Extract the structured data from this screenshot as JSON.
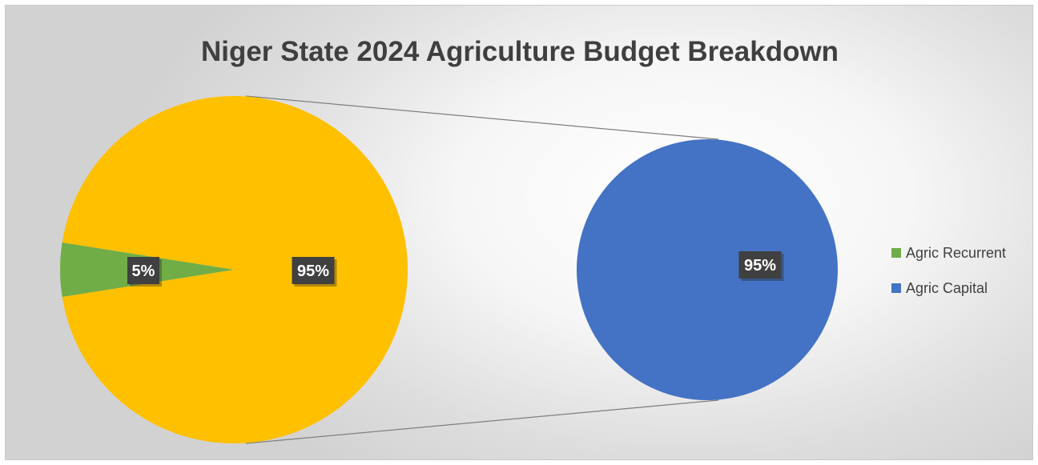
{
  "title": "Niger State 2024 Agriculture Budget Breakdown",
  "colors": {
    "recurrent": "#70ad47",
    "primary_other": "#ffc000",
    "capital": "#4472c4",
    "connector": "#7f7f7f",
    "label_bg": "#404040",
    "label_text": "#ffffff"
  },
  "chart_data": {
    "type": "pie",
    "subtype": "pie-of-pie",
    "title": "Niger State 2024 Agriculture Budget Breakdown",
    "primary_pie": {
      "slices": [
        {
          "name": "Agric Recurrent",
          "value": 5,
          "label": "5%"
        },
        {
          "name": "Other",
          "value": 95,
          "label": "95%"
        }
      ]
    },
    "secondary_pie": {
      "slices": [
        {
          "name": "Agric Capital",
          "value": 95,
          "label": "95%"
        }
      ]
    },
    "legend": {
      "position": "right",
      "entries": [
        {
          "name": "Agric Recurrent",
          "color": "#70ad47"
        },
        {
          "name": "Agric Capital",
          "color": "#4472c4"
        }
      ]
    }
  }
}
